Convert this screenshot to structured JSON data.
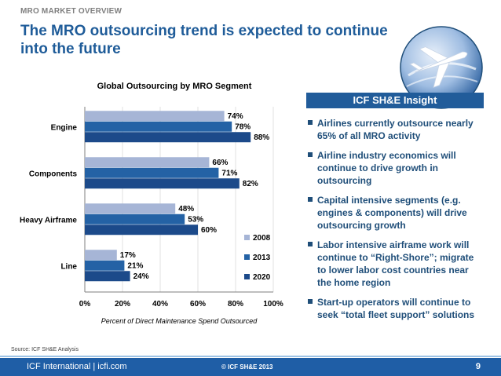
{
  "header": {
    "kicker": "MRO MARKET OVERVIEW",
    "title": "The MRO outsourcing trend is expected to continue into the future"
  },
  "insight": {
    "title": "ICF SH&E Insight",
    "bullets": [
      "Airlines currently outsource nearly 65% of all MRO activity",
      "Airline industry economics will continue to drive growth in outsourcing",
      "Capital intensive segments (e.g. engines & components) will drive outsourcing growth",
      "Labor intensive airframe work will continue to “Right-Shore”; migrate to lower labor cost countries near the home region",
      "Start-up operators will continue to seek “total fleet support” solutions"
    ]
  },
  "chart_data": {
    "type": "bar",
    "orientation": "horizontal",
    "title": "Global Outsourcing by MRO Segment",
    "categories": [
      "Engine",
      "Components",
      "Heavy Airframe",
      "Line"
    ],
    "series": [
      {
        "name": "2008",
        "values": [
          74,
          66,
          48,
          17
        ],
        "color": "#a6b5d6"
      },
      {
        "name": "2013",
        "values": [
          78,
          71,
          53,
          21
        ],
        "color": "#2462a5"
      },
      {
        "name": "2020",
        "values": [
          88,
          82,
          60,
          24
        ],
        "color": "#1c4a8a"
      }
    ],
    "value_labels": {
      "2008": [
        "74%",
        "66%",
        "48%",
        "17%"
      ],
      "2013": [
        "78%",
        "71%",
        "53%",
        "21%"
      ],
      "2020": [
        "88%",
        "82%",
        "60%",
        "24%"
      ]
    },
    "xlim": [
      0,
      100
    ],
    "xticks": [
      "0%",
      "20%",
      "40%",
      "60%",
      "80%",
      "100%"
    ],
    "xlabel": "Percent of Direct Maintenance Spend Outsourced",
    "ylabel": "",
    "legend_position": "bottom-right",
    "grid": true
  },
  "source": "Source: ICF SH&E Analysis",
  "footer": {
    "left": "ICF International | icfi.com",
    "center": "© ICF SH&E 2013",
    "page": "9"
  },
  "logo": {
    "icon": "airplane-globe-icon"
  }
}
